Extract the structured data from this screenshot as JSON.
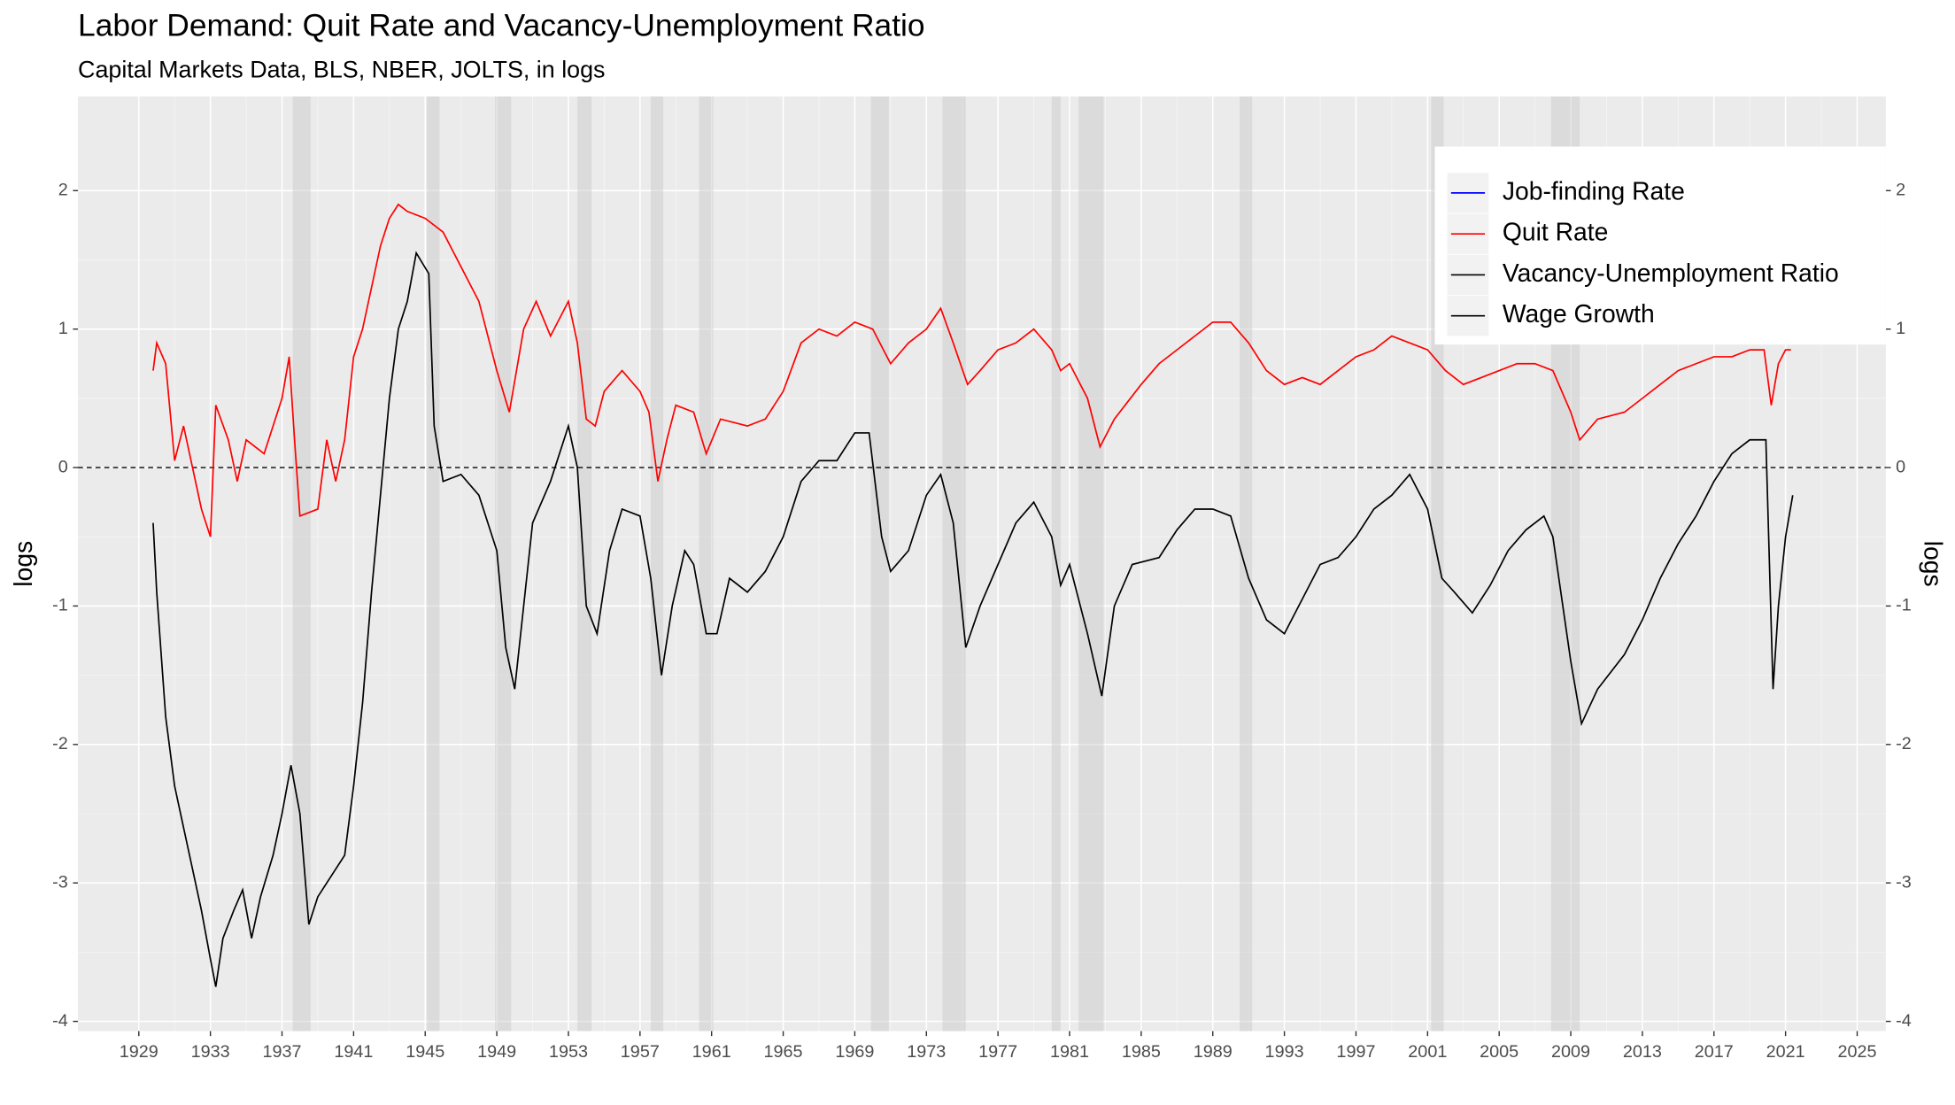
{
  "chart_data": {
    "type": "line",
    "title": "Labor Demand: Quit Rate and Vacancy-Unemployment Ratio",
    "subtitle": "Capital Markets Data, BLS, NBER, JOLTS, in logs",
    "y_label": "logs",
    "y2_label": "logs",
    "xlim": [
      1925.6,
      2026.6
    ],
    "xticks": [
      1929,
      1933,
      1937,
      1941,
      1945,
      1949,
      1953,
      1957,
      1961,
      1965,
      1969,
      1973,
      1977,
      1981,
      1985,
      1989,
      1993,
      1997,
      2001,
      2005,
      2009,
      2013,
      2017,
      2021,
      2025
    ],
    "ylim": [
      -4.07,
      2.68
    ],
    "yticks": [
      -4,
      -3,
      -2,
      -1,
      0,
      1,
      2
    ],
    "y2lim": [
      -4.07,
      2.68
    ],
    "y2ticks": [
      -4,
      -3,
      -2,
      -1,
      0,
      1,
      2
    ],
    "grid": true,
    "hline": 0,
    "legend_position": "top-right",
    "recessions": [
      [
        1937.6,
        1938.6
      ],
      [
        1945.1,
        1945.8
      ],
      [
        1948.9,
        1949.8
      ],
      [
        1953.5,
        1954.3
      ],
      [
        1957.6,
        1958.3
      ],
      [
        1960.3,
        1961.1
      ],
      [
        1969.9,
        1970.9
      ],
      [
        1973.9,
        1975.2
      ],
      [
        1980.0,
        1980.5
      ],
      [
        1981.5,
        1982.9
      ],
      [
        1990.5,
        1991.2
      ],
      [
        2001.2,
        2001.9
      ],
      [
        2007.9,
        2009.5
      ]
    ],
    "series": [
      {
        "name": "Job-finding Rate",
        "color": "#0000ff",
        "x": [],
        "values": []
      },
      {
        "name": "Quit Rate",
        "color": "#ff0000",
        "x": [
          1929.8,
          1930,
          1930.5,
          1931,
          1931.5,
          1932,
          1932.5,
          1933,
          1933.3,
          1934,
          1934.5,
          1935,
          1936,
          1937,
          1937.4,
          1937.7,
          1938,
          1939,
          1939.5,
          1940,
          1940.5,
          1941,
          1941.5,
          1942,
          1942.5,
          1943,
          1943.5,
          1944,
          1945,
          1946,
          1947,
          1948,
          1949,
          1949.7,
          1950.5,
          1951.2,
          1952,
          1953,
          1953.5,
          1954,
          1954.5,
          1955,
          1956,
          1957,
          1957.5,
          1958,
          1958.5,
          1959,
          1960,
          1960.7,
          1961.5,
          1963,
          1964,
          1965,
          1966,
          1967,
          1968,
          1969,
          1970,
          1971,
          1972,
          1973,
          1973.8,
          1974.5,
          1975.3,
          1976,
          1977,
          1978,
          1979,
          1980,
          1980.5,
          1981,
          1982,
          1982.7,
          1983.5,
          1985,
          1986,
          1987,
          1988,
          1989,
          1990,
          1991,
          1992,
          1993,
          1994,
          1995,
          1996,
          1997,
          1998,
          1999,
          2000,
          2001,
          2002,
          2003,
          2004,
          2005,
          2006,
          2007,
          2008,
          2009,
          2009.5,
          2010.5,
          2012,
          2013,
          2014,
          2015,
          2016,
          2017,
          2018,
          2019,
          2019.8,
          2020.2,
          2020.6,
          2021,
          2021.3
        ],
        "values": [
          0.7,
          0.9,
          0.75,
          0.05,
          0.3,
          0.0,
          -0.3,
          -0.5,
          0.45,
          0.2,
          -0.1,
          0.2,
          0.1,
          0.5,
          0.8,
          0.2,
          -0.35,
          -0.3,
          0.2,
          -0.1,
          0.2,
          0.8,
          1.0,
          1.3,
          1.6,
          1.8,
          1.9,
          1.85,
          1.8,
          1.7,
          1.45,
          1.2,
          0.7,
          0.4,
          1.0,
          1.2,
          0.95,
          1.2,
          0.9,
          0.35,
          0.3,
          0.55,
          0.7,
          0.55,
          0.4,
          -0.1,
          0.2,
          0.45,
          0.4,
          0.1,
          0.35,
          0.3,
          0.35,
          0.55,
          0.9,
          1.0,
          0.95,
          1.05,
          1.0,
          0.75,
          0.9,
          1.0,
          1.15,
          0.9,
          0.6,
          0.7,
          0.85,
          0.9,
          1.0,
          0.85,
          0.7,
          0.75,
          0.5,
          0.15,
          0.35,
          0.6,
          0.75,
          0.85,
          0.95,
          1.05,
          1.05,
          0.9,
          0.7,
          0.6,
          0.65,
          0.6,
          0.7,
          0.8,
          0.85,
          0.95,
          0.9,
          0.85,
          0.7,
          0.6,
          0.65,
          0.7,
          0.75,
          0.75,
          0.7,
          0.4,
          0.2,
          0.35,
          0.4,
          0.5,
          0.6,
          0.7,
          0.75,
          0.8,
          0.8,
          0.85,
          0.85,
          0.45,
          0.75,
          0.85,
          0.85
        ]
      },
      {
        "name": "Vacancy-Unemployment Ratio",
        "color": "#000000",
        "x": [
          1929.8,
          1930,
          1930.5,
          1931,
          1931.5,
          1932,
          1932.5,
          1933,
          1933.3,
          1933.7,
          1934.3,
          1934.8,
          1935.3,
          1935.8,
          1936.5,
          1937,
          1937.5,
          1938,
          1938.5,
          1939,
          1939.5,
          1940,
          1940.5,
          1941,
          1941.5,
          1942,
          1942.5,
          1943,
          1943.5,
          1944,
          1944.5,
          1945.2,
          1945.5,
          1946,
          1947,
          1948,
          1949,
          1949.5,
          1950,
          1950.5,
          1951,
          1952,
          1953,
          1953.5,
          1954,
          1954.6,
          1955.3,
          1956,
          1957,
          1957.6,
          1958.2,
          1958.8,
          1959.5,
          1960,
          1960.7,
          1961.3,
          1962,
          1963,
          1964,
          1965,
          1966,
          1967,
          1968,
          1969,
          1969.8,
          1970.5,
          1971,
          1972,
          1973,
          1973.8,
          1974.5,
          1975.2,
          1976,
          1977,
          1978,
          1979,
          1980,
          1980.5,
          1981,
          1982,
          1982.8,
          1983.5,
          1984.5,
          1986,
          1987,
          1988,
          1989,
          1990,
          1991,
          1992,
          1993,
          1994,
          1995,
          1996,
          1997,
          1998,
          1999,
          2000,
          2001,
          2001.8,
          2002.5,
          2003.5,
          2004.5,
          2005.5,
          2006.5,
          2007.5,
          2008,
          2009,
          2009.6,
          2010.5,
          2012,
          2013,
          2014,
          2015,
          2016,
          2017,
          2018,
          2019,
          2019.9,
          2020.3,
          2020.6,
          2021,
          2021.4
        ],
        "values": [
          -0.4,
          -0.9,
          -1.8,
          -2.3,
          -2.6,
          -2.9,
          -3.2,
          -3.55,
          -3.75,
          -3.4,
          -3.2,
          -3.05,
          -3.4,
          -3.1,
          -2.8,
          -2.5,
          -2.15,
          -2.5,
          -3.3,
          -3.1,
          -3.0,
          -2.9,
          -2.8,
          -2.3,
          -1.7,
          -0.9,
          -0.2,
          0.5,
          1.0,
          1.2,
          1.55,
          1.4,
          0.3,
          -0.1,
          -0.05,
          -0.2,
          -0.6,
          -1.3,
          -1.6,
          -1.0,
          -0.4,
          -0.1,
          0.3,
          0.0,
          -1.0,
          -1.2,
          -0.6,
          -0.3,
          -0.35,
          -0.8,
          -1.5,
          -1.0,
          -0.6,
          -0.7,
          -1.2,
          -1.2,
          -0.8,
          -0.9,
          -0.75,
          -0.5,
          -0.1,
          0.05,
          0.05,
          0.25,
          0.25,
          -0.5,
          -0.75,
          -0.6,
          -0.2,
          -0.05,
          -0.4,
          -1.3,
          -1.0,
          -0.7,
          -0.4,
          -0.25,
          -0.5,
          -0.85,
          -0.7,
          -1.2,
          -1.65,
          -1.0,
          -0.7,
          -0.65,
          -0.45,
          -0.3,
          -0.3,
          -0.35,
          -0.8,
          -1.1,
          -1.2,
          -0.95,
          -0.7,
          -0.65,
          -0.5,
          -0.3,
          -0.2,
          -0.05,
          -0.3,
          -0.8,
          -0.9,
          -1.05,
          -0.85,
          -0.6,
          -0.45,
          -0.35,
          -0.5,
          -1.4,
          -1.85,
          -1.6,
          -1.35,
          -1.1,
          -0.8,
          -0.55,
          -0.35,
          -0.1,
          0.1,
          0.2,
          0.2,
          -1.6,
          -1.0,
          -0.5,
          -0.2
        ]
      },
      {
        "name": "Wage Growth",
        "color": "#000000",
        "x": [],
        "values": []
      }
    ]
  }
}
